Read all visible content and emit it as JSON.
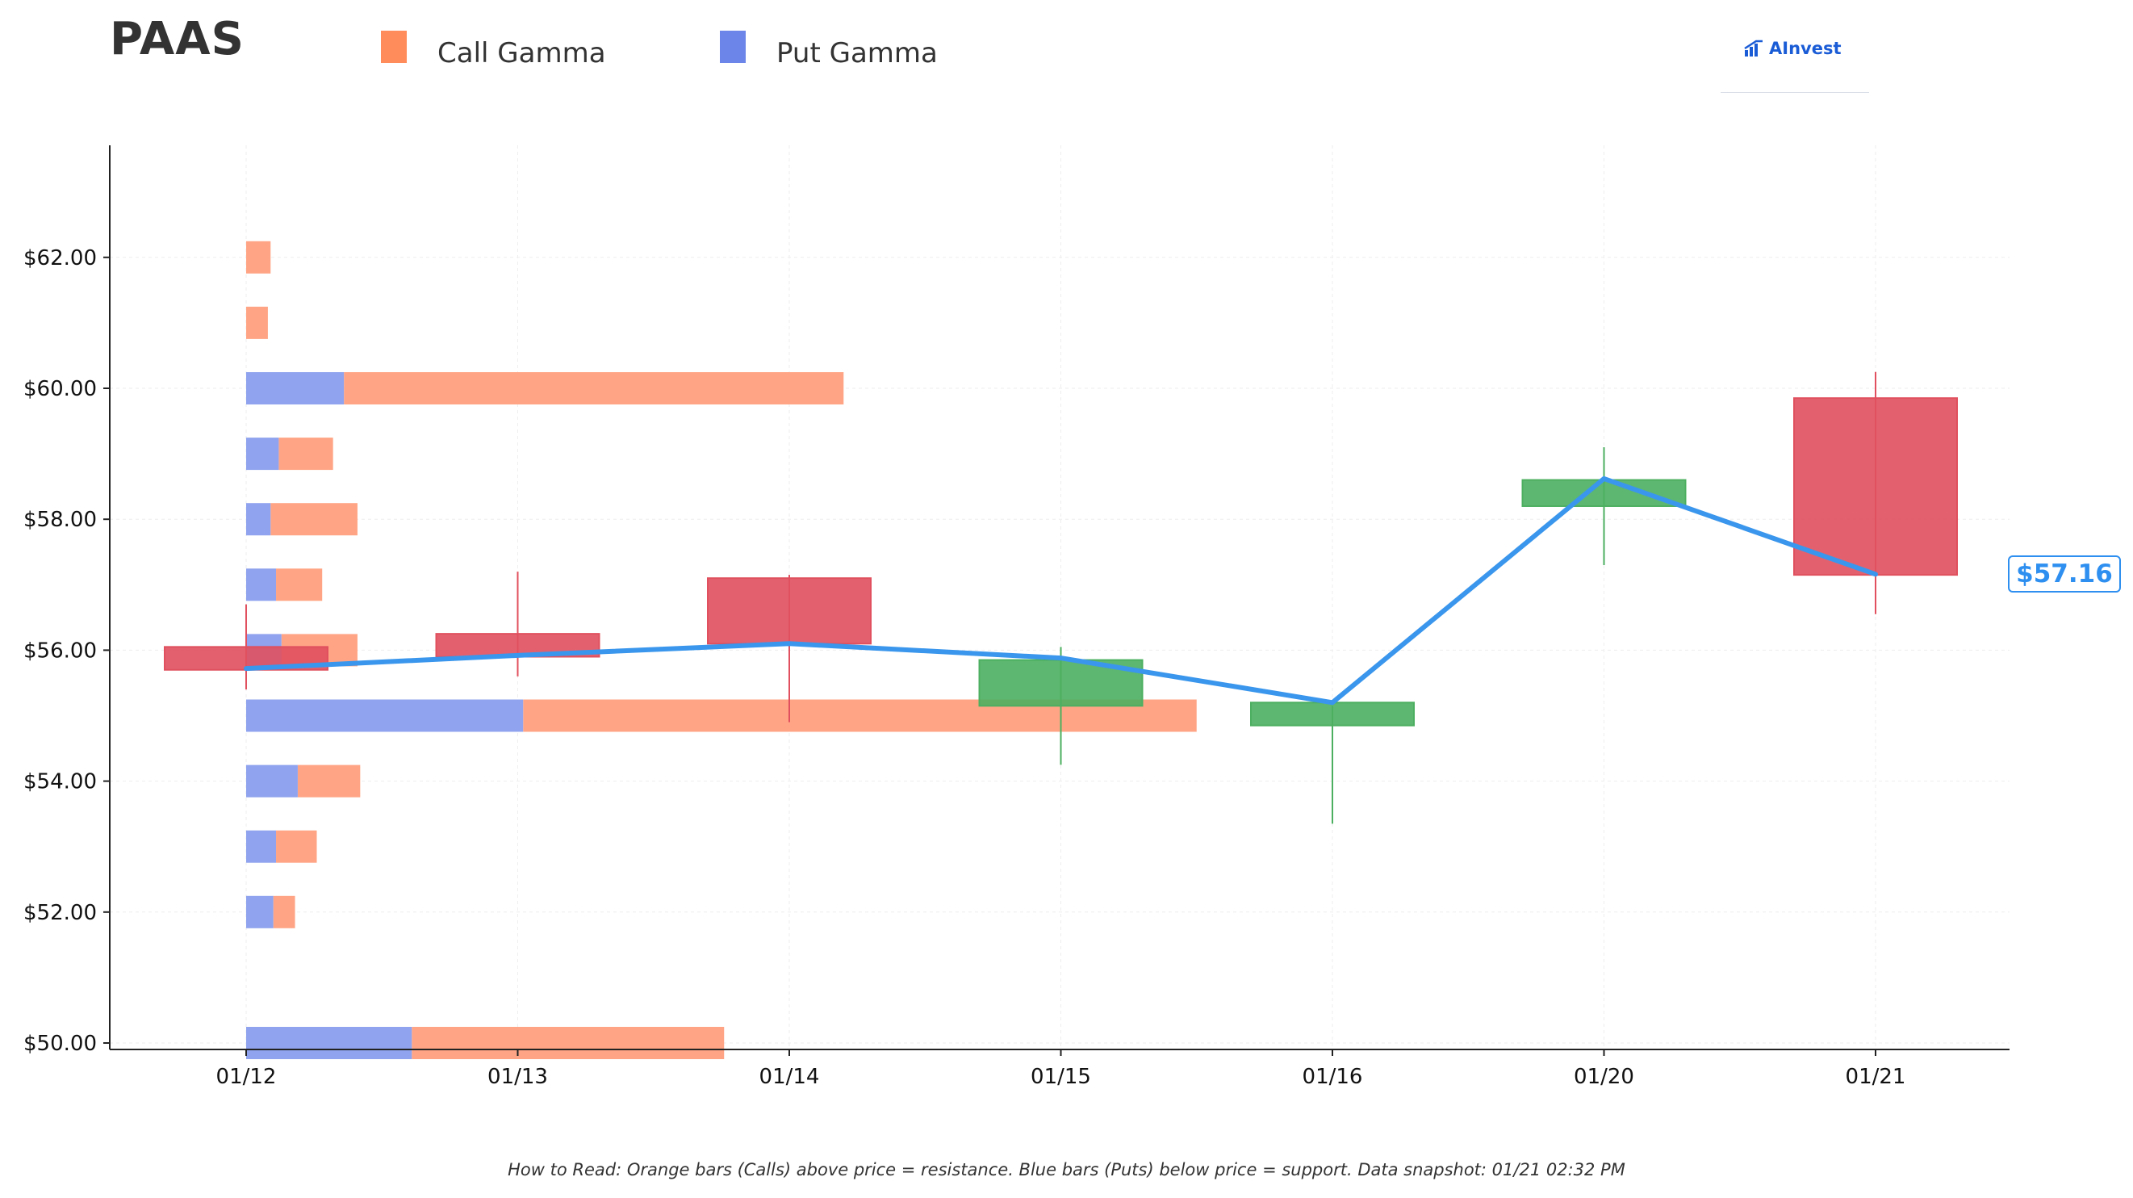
{
  "header": {
    "ticker": "PAAS"
  },
  "legend": [
    {
      "label": "Call Gamma",
      "color": "#ff8c5a"
    },
    {
      "label": "Put Gamma",
      "color": "#6b86e8"
    }
  ],
  "logo": {
    "text": "AInvest",
    "icon": "ainvest-logo-icon"
  },
  "footnote": "How to Read: Orange bars (Calls) above price = resistance. Blue bars (Puts) below price = support. Data snapshot: 01/21 02:32 PM",
  "price_label": "$57.16",
  "chart_data": {
    "type": "candlestick",
    "title": "PAAS",
    "categories": [
      "01/12",
      "01/13",
      "01/14",
      "01/15",
      "01/16",
      "01/20",
      "01/21"
    ],
    "ylim": [
      49.9,
      63.7
    ],
    "yticks": [
      50,
      52,
      54,
      56,
      58,
      60,
      62
    ],
    "ytick_labels": [
      "$50.00",
      "$52.00",
      "$54.00",
      "$56.00",
      "$58.00",
      "$60.00",
      "$62.00"
    ],
    "grid": true,
    "colors": {
      "up": "#4caf60",
      "down": "#e0505e",
      "line": "#3a96ec",
      "call": "#ffa585",
      "put": "#8fa3ee"
    },
    "ohlc": [
      {
        "date": "01/12",
        "open": 56.05,
        "high": 56.7,
        "low": 55.4,
        "close": 55.7
      },
      {
        "date": "01/13",
        "open": 56.25,
        "high": 57.2,
        "low": 55.6,
        "close": 55.9
      },
      {
        "date": "01/14",
        "open": 57.1,
        "high": 57.15,
        "low": 54.9,
        "close": 56.1
      },
      {
        "date": "01/15",
        "open": 55.15,
        "high": 56.05,
        "low": 54.25,
        "close": 55.85
      },
      {
        "date": "01/16",
        "open": 54.85,
        "high": 55.15,
        "low": 53.35,
        "close": 55.2
      },
      {
        "date": "01/20",
        "open": 58.2,
        "high": 59.1,
        "low": 57.3,
        "close": 58.6
      },
      {
        "date": "01/21",
        "open": 59.85,
        "high": 60.25,
        "low": 56.55,
        "close": 57.15
      }
    ],
    "close_line": {
      "name": "Close",
      "values": [
        55.72,
        55.92,
        56.1,
        55.88,
        55.2,
        58.62,
        57.16
      ]
    },
    "gamma": {
      "series": [
        {
          "name": "Put Gamma",
          "strikes": [
            50,
            52,
            53,
            54,
            55,
            56,
            57,
            58,
            59,
            60,
            61,
            62
          ],
          "values": [
            0.61,
            0.1,
            0.11,
            0.19,
            1.02,
            0.13,
            0.11,
            0.09,
            0.12,
            0.36,
            0.0,
            0.0
          ]
        },
        {
          "name": "Call Gamma",
          "strikes": [
            50,
            52,
            53,
            54,
            55,
            56,
            57,
            58,
            59,
            60,
            61,
            62
          ],
          "values": [
            1.15,
            0.08,
            0.15,
            0.23,
            2.48,
            0.28,
            0.17,
            0.32,
            0.2,
            1.84,
            0.08,
            0.09
          ]
        }
      ],
      "x_scale_note": "horizontal bar length in category-axis units starting at 01/12"
    }
  }
}
